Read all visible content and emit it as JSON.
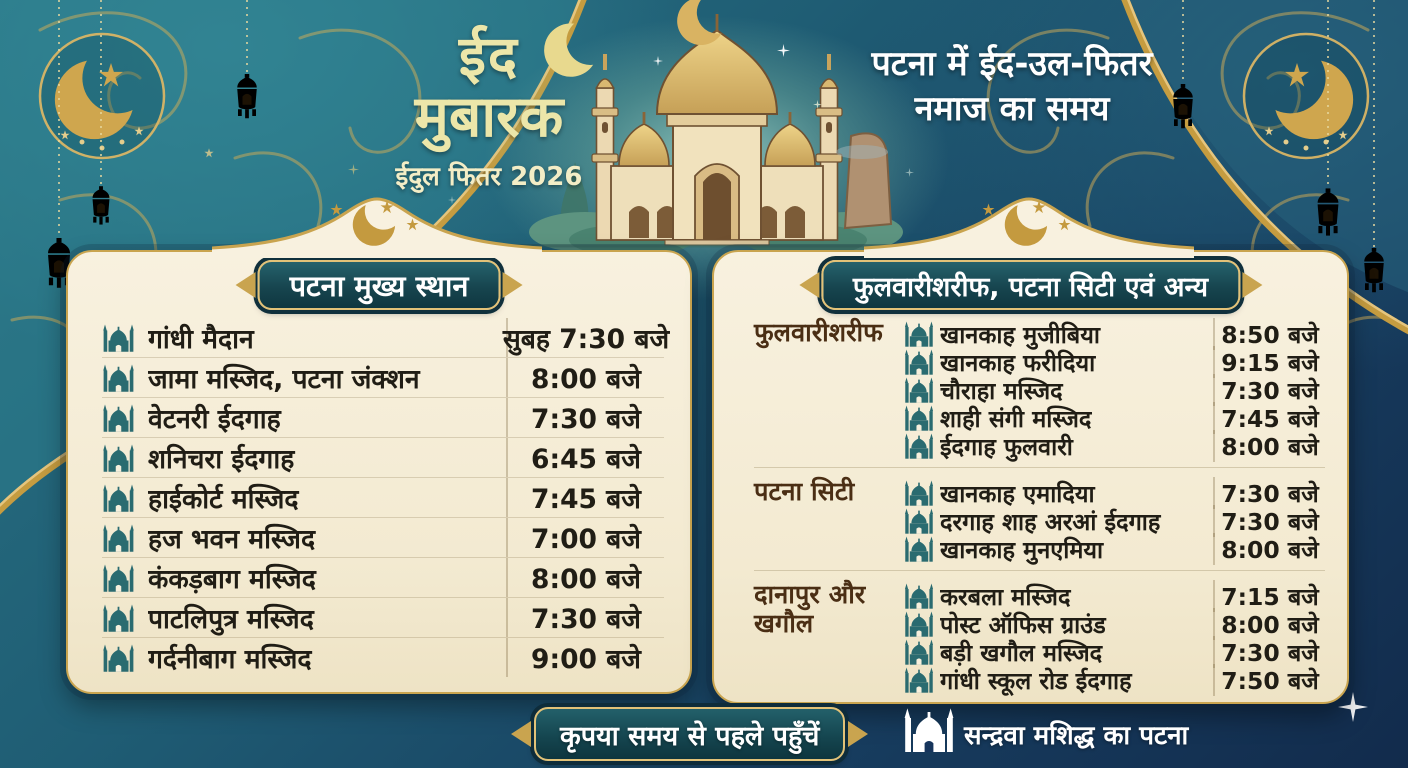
{
  "poster": {
    "brand": {
      "title_line1": "ईद",
      "title_line2": "मुबारक",
      "subtitle": "ईदुल फितर 2026"
    },
    "heading": {
      "line1": "पटना में ईद-उल-फितर",
      "line2": "नमाज का समय"
    },
    "left_panel": {
      "title": "पटना मुख्य स्थान",
      "rows": [
        {
          "name": "गांधी मैदान",
          "time": "सुबह 7:30 बजे"
        },
        {
          "name": "जामा मस्जिद, पटना जंक्शन",
          "time": "8:00 बजे"
        },
        {
          "name": "वेटनरी ईदगाह",
          "time": "7:30 बजे"
        },
        {
          "name": "शनिचरा ईदगाह",
          "time": "6:45 बजे"
        },
        {
          "name": "हाईकोर्ट मस्जिद",
          "time": "7:45 बजे"
        },
        {
          "name": "हज भवन मस्जिद",
          "time": "7:00 बजे"
        },
        {
          "name": "कंकड़बाग मस्जिद",
          "time": "8:00 बजे"
        },
        {
          "name": "पाटलिपुत्र मस्जिद",
          "time": "7:30 बजे"
        },
        {
          "name": "गर्दनीबाग मस्जिद",
          "time": "9:00 बजे"
        }
      ]
    },
    "right_panel": {
      "title": "फुलवारीशरीफ, पटना सिटी एवं अन्य",
      "groups": [
        {
          "label": "फुलवारीशरीफ",
          "rows": [
            {
              "name": "खानकाह मुजीबिया",
              "time": "8:50 बजे"
            },
            {
              "name": "खानकाह फरीदिया",
              "time": "9:15 बजे"
            },
            {
              "name": "चौराहा मस्जिद",
              "time": "7:30 बजे"
            },
            {
              "name": "शाही संगी मस्जिद",
              "time": "7:45 बजे"
            },
            {
              "name": "ईदगाह फुलवारी",
              "time": "8:00 बजे"
            }
          ]
        },
        {
          "label": "पटना सिटी",
          "rows": [
            {
              "name": "खानकाह एमादिया",
              "time": "7:30 बजे"
            },
            {
              "name": "दरगाह शाह अरआं ईदगाह",
              "time": "7:30 बजे"
            },
            {
              "name": "खानकाह मुनएमिया",
              "time": "8:00 बजे"
            }
          ]
        },
        {
          "label": "दानापुर और खगौल",
          "rows": [
            {
              "name": "करबला मस्जिद",
              "time": "7:15 बजे"
            },
            {
              "name": "पोस्ट ऑफिस ग्राउंड",
              "time": "8:00 बजे"
            },
            {
              "name": "बड़ी खगौल मस्जिद",
              "time": "7:30 बजे"
            },
            {
              "name": "गांधी स्कूल रोड ईदगाह",
              "time": "7:50 बजे"
            }
          ]
        }
      ]
    },
    "footer": {
      "notice": "कृपया समय से पहले पहुँचें",
      "credit": "सन्द्रवा मशिद्ध का पटना"
    },
    "icons": {
      "row_icon": "mosque-icon",
      "footer_icon": "mosque-icon",
      "brand_icon": "crescent-moon-icon",
      "decor_icons": [
        "crescent-moon-icon",
        "star-icon",
        "lantern-icon",
        "flower-icon",
        "mosque-illustration"
      ]
    },
    "colors": {
      "background_teal": "#2a7484",
      "background_navy": "#122b4c",
      "gold": "#c9a44f",
      "panel_cream": "#f6efdc",
      "pill_dark": "#17454f",
      "text_dark": "#201d15",
      "group_label_brown": "#4a2e14",
      "mosque_icon_teal": "#2a6b70",
      "brand_text": "#ece6a9",
      "white": "#ffffff"
    }
  }
}
